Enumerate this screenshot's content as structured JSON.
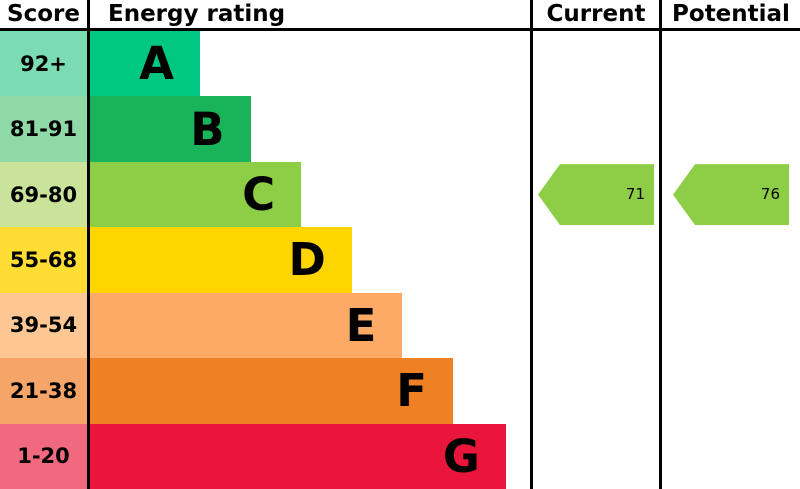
{
  "header": {
    "score": "Score",
    "rating": "Energy rating",
    "current": "Current",
    "potential": "Potential"
  },
  "chart_data": {
    "type": "bar",
    "title": "Energy rating",
    "description": "EPC energy efficiency rating chart",
    "categories": [
      "A",
      "B",
      "C",
      "D",
      "E",
      "F",
      "G"
    ],
    "score_ranges": [
      "92+",
      "81-91",
      "69-80",
      "55-68",
      "39-54",
      "21-38",
      "1-20"
    ],
    "colors": [
      "#00c781",
      "#19b459",
      "#8dce46",
      "#ffd500",
      "#fcaa65",
      "#ef8023",
      "#e9153b"
    ],
    "tints": [
      "#7bdcb2",
      "#8ed9a6",
      "#c9e49a",
      "#ffdd32",
      "#fdc793",
      "#f4a567",
      "#f0697f"
    ],
    "bar_width_pct": [
      25,
      36.5,
      48,
      59.5,
      71,
      82.5,
      94.5
    ],
    "current": {
      "value": 71,
      "band": "C"
    },
    "potential": {
      "value": 76,
      "band": "C"
    }
  },
  "arrows": {
    "current_value": "71",
    "potential_value": "76",
    "color": "#8dce46"
  }
}
